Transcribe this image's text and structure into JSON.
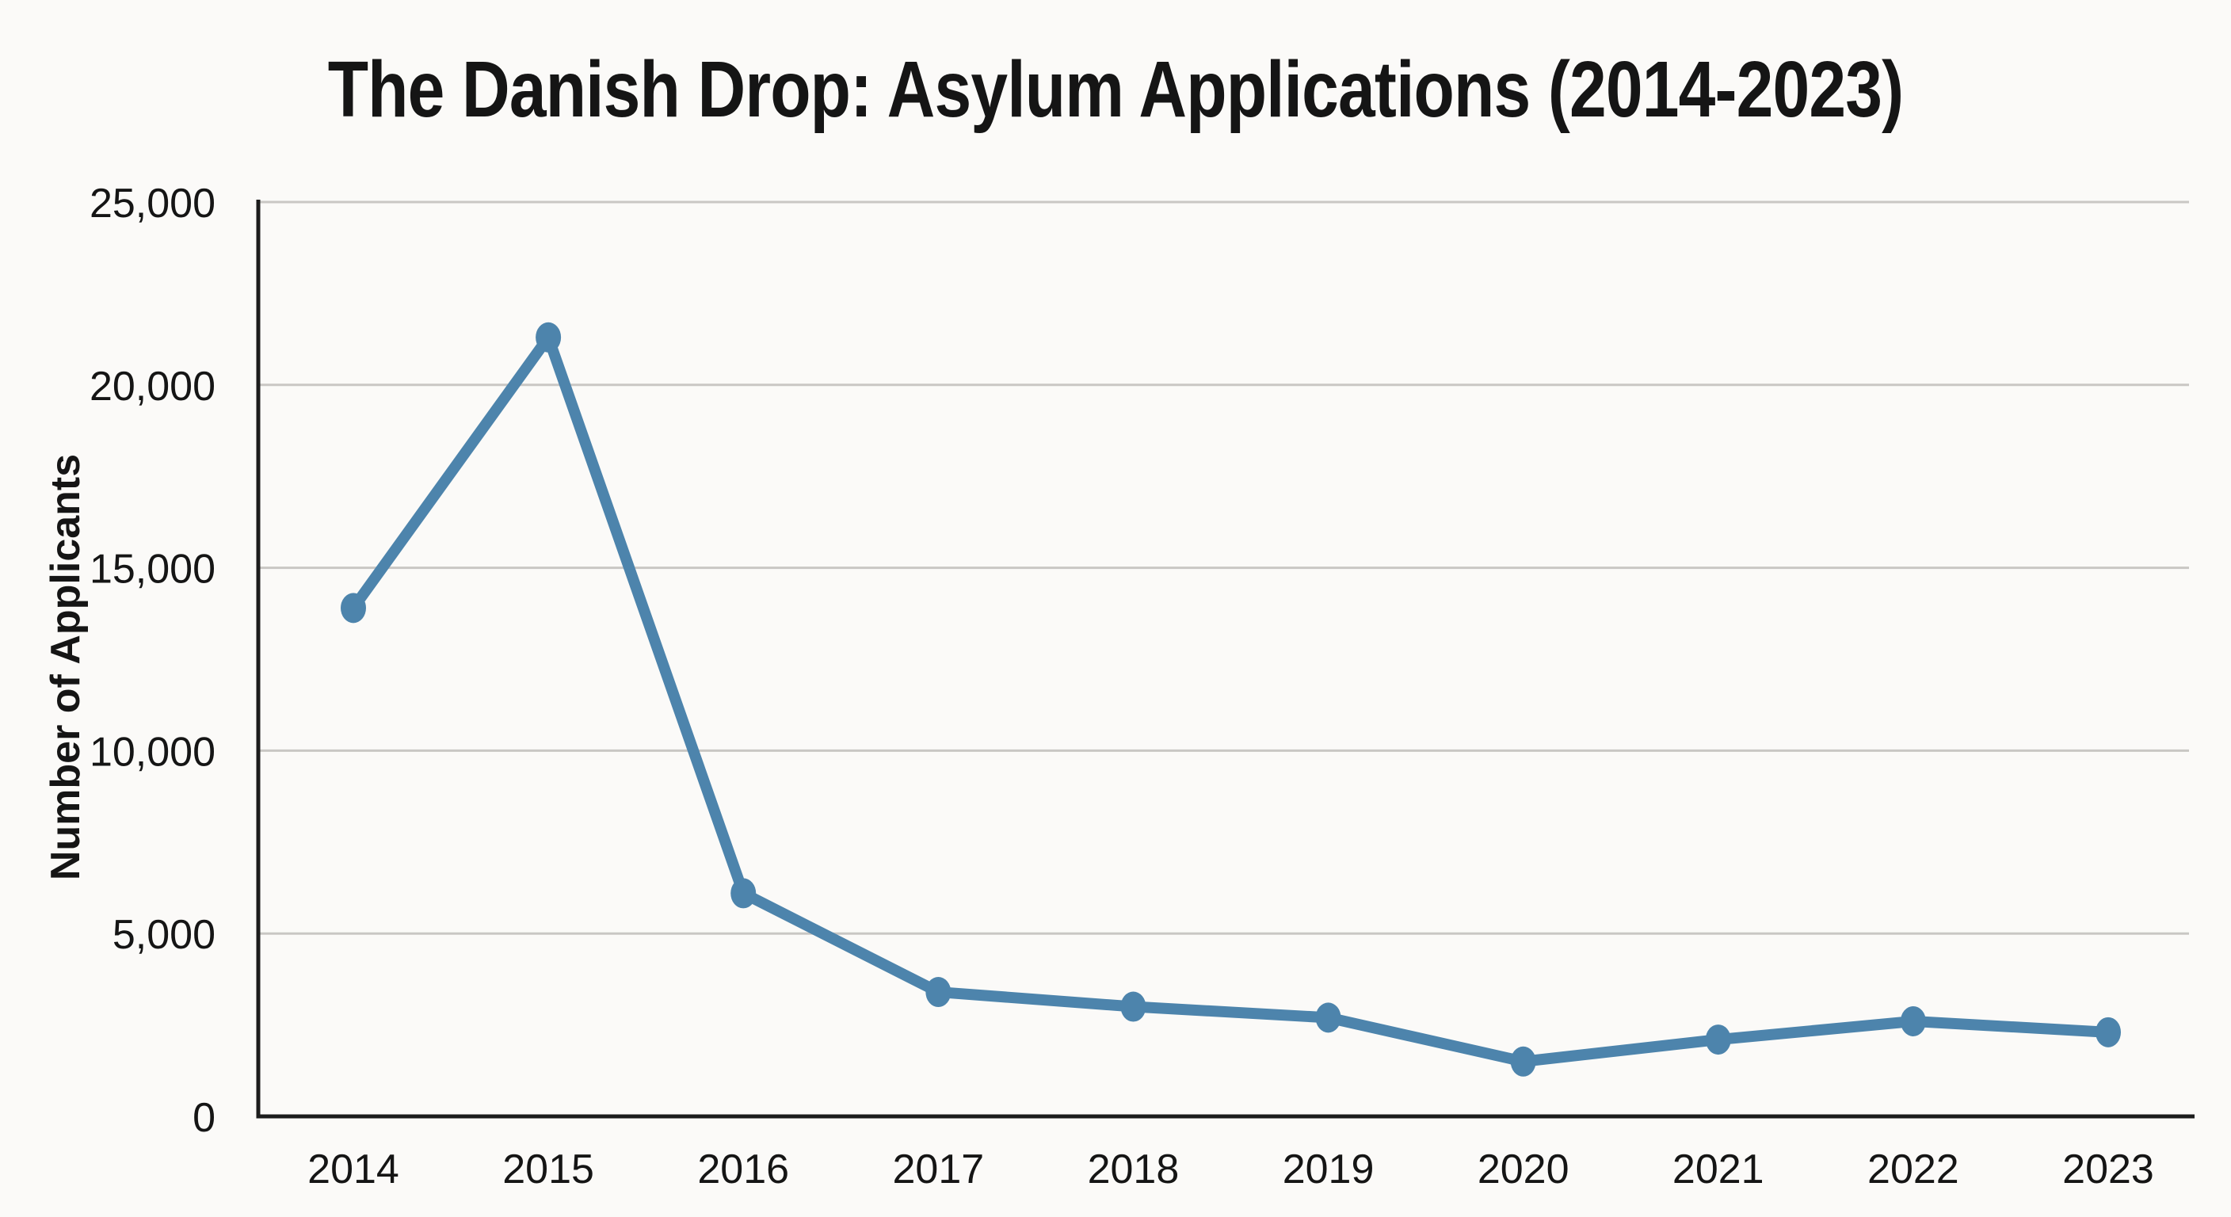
{
  "page": {
    "title": "The Danish Drop: Asylum Applications (2014-2023)"
  },
  "chart_data": {
    "type": "line",
    "title": "The Danish Drop: Asylum Applications (2014-2023)",
    "xlabel": "",
    "ylabel": "Number of Applicants",
    "categories": [
      "2014",
      "2015",
      "2016",
      "2017",
      "2018",
      "2019",
      "2020",
      "2021",
      "2022",
      "2023"
    ],
    "values": [
      13900,
      21300,
      6100,
      3400,
      3000,
      2700,
      1500,
      2100,
      2600,
      2300
    ],
    "ylim": [
      0,
      25000
    ],
    "y_ticks": [
      0,
      5000,
      10000,
      15000,
      20000,
      25000
    ],
    "y_tick_labels": [
      "0",
      "5,000",
      "10,000",
      "15,000",
      "20,000",
      "25,000"
    ],
    "grid": "horizontal",
    "legend_position": "none",
    "marker": "circle"
  },
  "colors": {
    "background": "#fbfaf8",
    "text": "#151515",
    "axis": "#1c1c1c",
    "gridline": "#c9c7c4",
    "line": "#4d84ac"
  }
}
